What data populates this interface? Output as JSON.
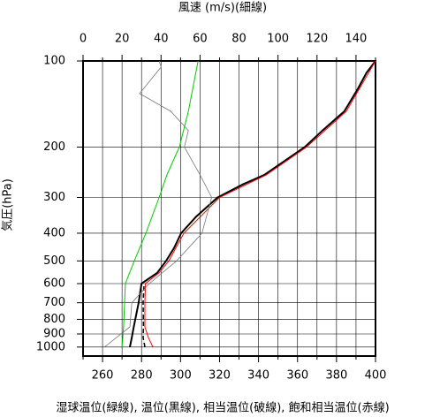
{
  "chart_data": {
    "type": "profile",
    "title": "風速 (m/s)(細線)",
    "y_label": "気圧(hPa)",
    "x_label": "湿球温位(緑線), 温位(黒線), 相当温位(破線), 飽和相当温位(赤線)",
    "xlim": [
      250,
      400
    ],
    "xticks": [
      260,
      280,
      300,
      320,
      340,
      360,
      380,
      400
    ],
    "xminor_ticks": [
      250,
      270,
      290,
      310,
      330,
      350,
      370,
      390
    ],
    "x2lim": [
      0,
      150
    ],
    "x2ticks": [
      0,
      20,
      40,
      60,
      80,
      100,
      120,
      140
    ],
    "x2minor_ticks": [
      10,
      30,
      50,
      70,
      90,
      110,
      130,
      150
    ],
    "ylim": [
      1075,
      100
    ],
    "ylog": true,
    "yticks": [
      100,
      200,
      300,
      400,
      500,
      600,
      700,
      800,
      900,
      1000
    ],
    "grid": true,
    "series": [
      {
        "color": "#00cc00",
        "width": 1,
        "x": [
          270,
          270.4,
          270.8,
          271.3,
          271.7,
          276.3,
          282.2,
          289,
          293,
          299.4,
          304,
          309
        ],
        "y": [
          1000,
          925,
          850,
          700,
          600,
          500,
          400,
          300,
          250,
          200,
          150,
          100
        ]
      },
      {
        "color": "#000000",
        "width": 2,
        "x": [
          274,
          275,
          276,
          278.5,
          280,
          288,
          292.6,
          296.7,
          300.3,
          308,
          319,
          332,
          343,
          363.7,
          372.8,
          384,
          391,
          395.4,
          400
        ],
        "y": [
          1000,
          925,
          850,
          700,
          600,
          550,
          500,
          450,
          400,
          350,
          300,
          270,
          250,
          200,
          175,
          150,
          125,
          110,
          100
        ]
      },
      {
        "color": "#000000",
        "width": 1.5,
        "dash": true,
        "x": [
          281.7,
          280.8,
          281,
          280.8,
          281.3
        ],
        "y": [
          1000,
          925,
          850,
          700,
          600
        ]
      },
      {
        "color": "#ff0000",
        "width": 1,
        "x": [
          285.8,
          283.5,
          281.7,
          281.7,
          282,
          289,
          294,
          301.7,
          320,
          344,
          364.6,
          385,
          400
        ],
        "y": [
          1000,
          925,
          850,
          700,
          600,
          550,
          500,
          400,
          300,
          250,
          200,
          150,
          100
        ]
      },
      {
        "color": "#777777",
        "width": 0.8,
        "axis": "x2",
        "x": [
          11,
          24,
          25,
          34,
          48,
          61,
          66,
          60,
          52,
          54,
          45,
          29,
          40,
          39
        ],
        "y": [
          1000,
          850,
          700,
          600,
          500,
          400,
          300,
          250,
          200,
          175,
          150,
          130,
          105,
          100
        ]
      }
    ]
  }
}
